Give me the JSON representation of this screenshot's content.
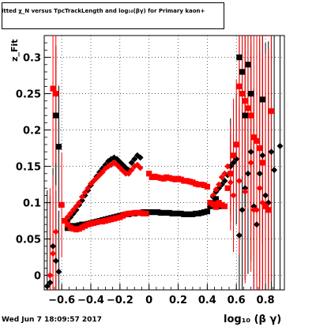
{
  "chart_data": {
    "type": "scatter",
    "title_line": "itted  χ_N  versus TpcTrackLength and log₁₀(βγ) for Primary kaon+",
    "xlabel": "log₁₀ (β γ)",
    "ylabel": "z_Fit",
    "footer": "Wed Jun  7 18:09:57 2017",
    "xlim": [
      -0.72,
      0.93
    ],
    "ylim": [
      -0.02,
      0.33
    ],
    "xticks": [
      -0.6,
      -0.4,
      -0.2,
      0,
      0.2,
      0.4,
      0.6,
      0.8
    ],
    "xtick_labels": [
      "−0.6",
      "−0.4",
      "−0.2",
      "0",
      "0.2",
      "0.4",
      "0.6",
      "0.8"
    ],
    "yticks": [
      0,
      0.05,
      0.1,
      0.15,
      0.2,
      0.25,
      0.3
    ],
    "ytick_labels": [
      "0",
      "0.05",
      "0.1",
      "0.15",
      "0.2",
      "0.25",
      "0.3"
    ],
    "grid": true,
    "series": [
      {
        "color": "#000000",
        "marker": "diamond",
        "points": [
          [
            -0.7,
            -0.015
          ],
          [
            -0.68,
            -0.01
          ],
          [
            -0.66,
            0.04
          ],
          [
            -0.64,
            0.02
          ],
          [
            -0.62,
            0.005
          ],
          [
            -0.56,
            0.075
          ],
          [
            -0.54,
            0.08
          ],
          [
            -0.52,
            0.085
          ],
          [
            -0.5,
            0.09
          ],
          [
            -0.48,
            0.097
          ],
          [
            -0.46,
            0.103
          ],
          [
            -0.44,
            0.11
          ],
          [
            -0.42,
            0.117
          ],
          [
            -0.4,
            0.124
          ],
          [
            -0.38,
            0.13
          ],
          [
            -0.36,
            0.136
          ],
          [
            -0.34,
            0.142
          ],
          [
            -0.32,
            0.147
          ],
          [
            -0.3,
            0.152
          ],
          [
            -0.28,
            0.157
          ],
          [
            -0.26,
            0.16
          ],
          [
            -0.24,
            0.162
          ],
          [
            -0.22,
            0.16
          ],
          [
            -0.2,
            0.156
          ],
          [
            -0.18,
            0.152
          ],
          [
            -0.16,
            0.148
          ],
          [
            -0.14,
            0.145
          ],
          [
            -0.12,
            0.155
          ],
          [
            -0.1,
            0.16
          ],
          [
            -0.08,
            0.165
          ],
          [
            -0.06,
            0.162
          ],
          [
            0.42,
            0.1
          ],
          [
            0.44,
            0.108
          ],
          [
            0.46,
            0.115
          ],
          [
            0.48,
            0.12
          ],
          [
            0.5,
            0.125
          ],
          [
            0.52,
            0.13
          ],
          [
            0.54,
            0.138
          ],
          [
            0.56,
            0.15
          ],
          [
            0.58,
            0.155
          ],
          [
            0.6,
            0.16
          ],
          [
            0.62,
            0.055
          ],
          [
            0.64,
            0.09
          ],
          [
            0.66,
            0.12
          ],
          [
            0.68,
            0.14
          ],
          [
            0.7,
            0.17
          ],
          [
            0.72,
            0.095
          ],
          [
            0.74,
            0.07
          ],
          [
            0.76,
            0.14
          ],
          [
            0.78,
            0.165
          ],
          [
            0.8,
            0.11
          ],
          [
            0.82,
            0.1
          ],
          [
            0.84,
            0.17
          ],
          [
            0.86,
            0.145
          ],
          [
            0.9,
            0.178
          ]
        ]
      },
      {
        "color": "#ff0000",
        "marker": "diamond",
        "points": [
          [
            -0.68,
            0.0
          ],
          [
            -0.66,
            0.03
          ],
          [
            -0.64,
            0.06
          ],
          [
            -0.56,
            0.08
          ],
          [
            -0.54,
            0.085
          ],
          [
            -0.52,
            0.09
          ],
          [
            -0.5,
            0.095
          ],
          [
            -0.48,
            0.1
          ],
          [
            -0.46,
            0.108
          ],
          [
            -0.44,
            0.114
          ],
          [
            -0.42,
            0.12
          ],
          [
            -0.4,
            0.126
          ],
          [
            -0.38,
            0.13
          ],
          [
            -0.36,
            0.134
          ],
          [
            -0.34,
            0.138
          ],
          [
            -0.32,
            0.142
          ],
          [
            -0.3,
            0.147
          ],
          [
            -0.28,
            0.15
          ],
          [
            -0.26,
            0.152
          ],
          [
            -0.24,
            0.155
          ],
          [
            -0.22,
            0.152
          ],
          [
            -0.2,
            0.148
          ],
          [
            -0.18,
            0.144
          ],
          [
            -0.16,
            0.14
          ],
          [
            -0.14,
            0.14
          ],
          [
            -0.12,
            0.145
          ],
          [
            -0.1,
            0.15
          ],
          [
            -0.08,
            0.152
          ],
          [
            -0.06,
            0.148
          ],
          [
            0.44,
            0.11
          ],
          [
            0.46,
            0.118
          ],
          [
            0.48,
            0.125
          ],
          [
            0.5,
            0.135
          ],
          [
            0.52,
            0.14
          ],
          [
            0.54,
            0.15
          ],
          [
            0.56,
            0.128
          ],
          [
            0.58,
            0.11
          ],
          [
            0.62,
            0.13
          ],
          [
            0.66,
            0.115
          ],
          [
            0.7,
            0.155
          ],
          [
            0.72,
            0.09
          ],
          [
            0.74,
            0.09
          ],
          [
            0.76,
            0.12
          ],
          [
            0.78,
            0.1
          ]
        ]
      },
      {
        "color": "#000000",
        "marker": "square",
        "points": [
          [
            -0.64,
            0.22
          ],
          [
            -0.62,
            0.177
          ],
          [
            -0.56,
            0.065
          ],
          [
            -0.54,
            0.068
          ],
          [
            -0.52,
            0.068
          ],
          [
            -0.5,
            0.068
          ],
          [
            -0.48,
            0.069
          ],
          [
            -0.46,
            0.07
          ],
          [
            -0.44,
            0.07
          ],
          [
            -0.42,
            0.071
          ],
          [
            -0.4,
            0.072
          ],
          [
            -0.38,
            0.073
          ],
          [
            -0.36,
            0.074
          ],
          [
            -0.34,
            0.075
          ],
          [
            -0.32,
            0.076
          ],
          [
            -0.3,
            0.077
          ],
          [
            -0.28,
            0.078
          ],
          [
            -0.26,
            0.079
          ],
          [
            -0.24,
            0.08
          ],
          [
            -0.22,
            0.081
          ],
          [
            -0.2,
            0.082
          ],
          [
            -0.18,
            0.083
          ],
          [
            -0.16,
            0.084
          ],
          [
            -0.14,
            0.084
          ],
          [
            -0.12,
            0.085
          ],
          [
            -0.1,
            0.085
          ],
          [
            -0.08,
            0.086
          ],
          [
            -0.06,
            0.086
          ],
          [
            -0.04,
            0.087
          ],
          [
            -0.02,
            0.087
          ],
          [
            0.0,
            0.087
          ],
          [
            0.02,
            0.087
          ],
          [
            0.04,
            0.087
          ],
          [
            0.06,
            0.087
          ],
          [
            0.08,
            0.086
          ],
          [
            0.1,
            0.086
          ],
          [
            0.12,
            0.086
          ],
          [
            0.14,
            0.086
          ],
          [
            0.16,
            0.085
          ],
          [
            0.18,
            0.085
          ],
          [
            0.2,
            0.085
          ],
          [
            0.22,
            0.085
          ],
          [
            0.24,
            0.084
          ],
          [
            0.26,
            0.084
          ],
          [
            0.28,
            0.084
          ],
          [
            0.3,
            0.084
          ],
          [
            0.32,
            0.085
          ],
          [
            0.34,
            0.085
          ],
          [
            0.36,
            0.086
          ],
          [
            0.38,
            0.087
          ],
          [
            0.4,
            0.088
          ],
          [
            0.42,
            0.095
          ],
          [
            0.44,
            0.1
          ],
          [
            0.46,
            0.105
          ],
          [
            0.48,
            0.095
          ],
          [
            0.62,
            0.3
          ],
          [
            0.64,
            0.28
          ],
          [
            0.66,
            0.22
          ],
          [
            0.68,
            0.29
          ],
          [
            0.7,
            0.25
          ],
          [
            0.78,
            0.242
          ]
        ]
      },
      {
        "color": "#ff0000",
        "marker": "square",
        "points": [
          [
            -0.66,
            0.257
          ],
          [
            -0.64,
            0.25
          ],
          [
            -0.6,
            0.097
          ],
          [
            -0.58,
            0.075
          ],
          [
            -0.56,
            0.07
          ],
          [
            -0.54,
            0.066
          ],
          [
            -0.52,
            0.064
          ],
          [
            -0.5,
            0.063
          ],
          [
            -0.48,
            0.064
          ],
          [
            -0.46,
            0.066
          ],
          [
            -0.44,
            0.068
          ],
          [
            -0.42,
            0.07
          ],
          [
            -0.4,
            0.071
          ],
          [
            -0.38,
            0.072
          ],
          [
            -0.36,
            0.073
          ],
          [
            -0.34,
            0.074
          ],
          [
            -0.32,
            0.074
          ],
          [
            -0.3,
            0.075
          ],
          [
            -0.28,
            0.076
          ],
          [
            -0.26,
            0.077
          ],
          [
            -0.24,
            0.078
          ],
          [
            -0.22,
            0.079
          ],
          [
            -0.2,
            0.08
          ],
          [
            -0.18,
            0.082
          ],
          [
            -0.16,
            0.084
          ],
          [
            -0.14,
            0.085
          ],
          [
            -0.12,
            0.085
          ],
          [
            -0.1,
            0.086
          ],
          [
            -0.08,
            0.086
          ],
          [
            -0.06,
            0.086
          ],
          [
            -0.04,
            0.085
          ],
          [
            -0.02,
            0.085
          ],
          [
            0.0,
            0.14
          ],
          [
            0.02,
            0.135
          ],
          [
            0.04,
            0.136
          ],
          [
            0.06,
            0.135
          ],
          [
            0.08,
            0.134
          ],
          [
            0.1,
            0.133
          ],
          [
            0.12,
            0.135
          ],
          [
            0.14,
            0.134
          ],
          [
            0.16,
            0.133
          ],
          [
            0.18,
            0.132
          ],
          [
            0.2,
            0.133
          ],
          [
            0.22,
            0.132
          ],
          [
            0.24,
            0.13
          ],
          [
            0.26,
            0.13
          ],
          [
            0.28,
            0.129
          ],
          [
            0.3,
            0.128
          ],
          [
            0.32,
            0.126
          ],
          [
            0.34,
            0.125
          ],
          [
            0.36,
            0.125
          ],
          [
            0.38,
            0.124
          ],
          [
            0.4,
            0.122
          ],
          [
            0.42,
            0.1
          ],
          [
            0.44,
            0.098
          ],
          [
            0.46,
            0.094
          ],
          [
            0.48,
            0.1
          ],
          [
            0.5,
            0.097
          ],
          [
            0.52,
            0.095
          ],
          [
            0.54,
            0.12
          ],
          [
            0.56,
            0.14
          ],
          [
            0.58,
            0.165
          ],
          [
            0.6,
            0.18
          ],
          [
            0.62,
            0.26
          ],
          [
            0.64,
            0.25
          ],
          [
            0.66,
            0.24
          ],
          [
            0.68,
            0.23
          ],
          [
            0.7,
            0.22
          ],
          [
            0.72,
            0.19
          ],
          [
            0.74,
            0.185
          ],
          [
            0.76,
            0.175
          ],
          [
            0.78,
            0.155
          ],
          [
            0.8,
            0.095
          ],
          [
            0.82,
            0.09
          ],
          [
            0.84,
            0.226
          ]
        ]
      }
    ]
  }
}
